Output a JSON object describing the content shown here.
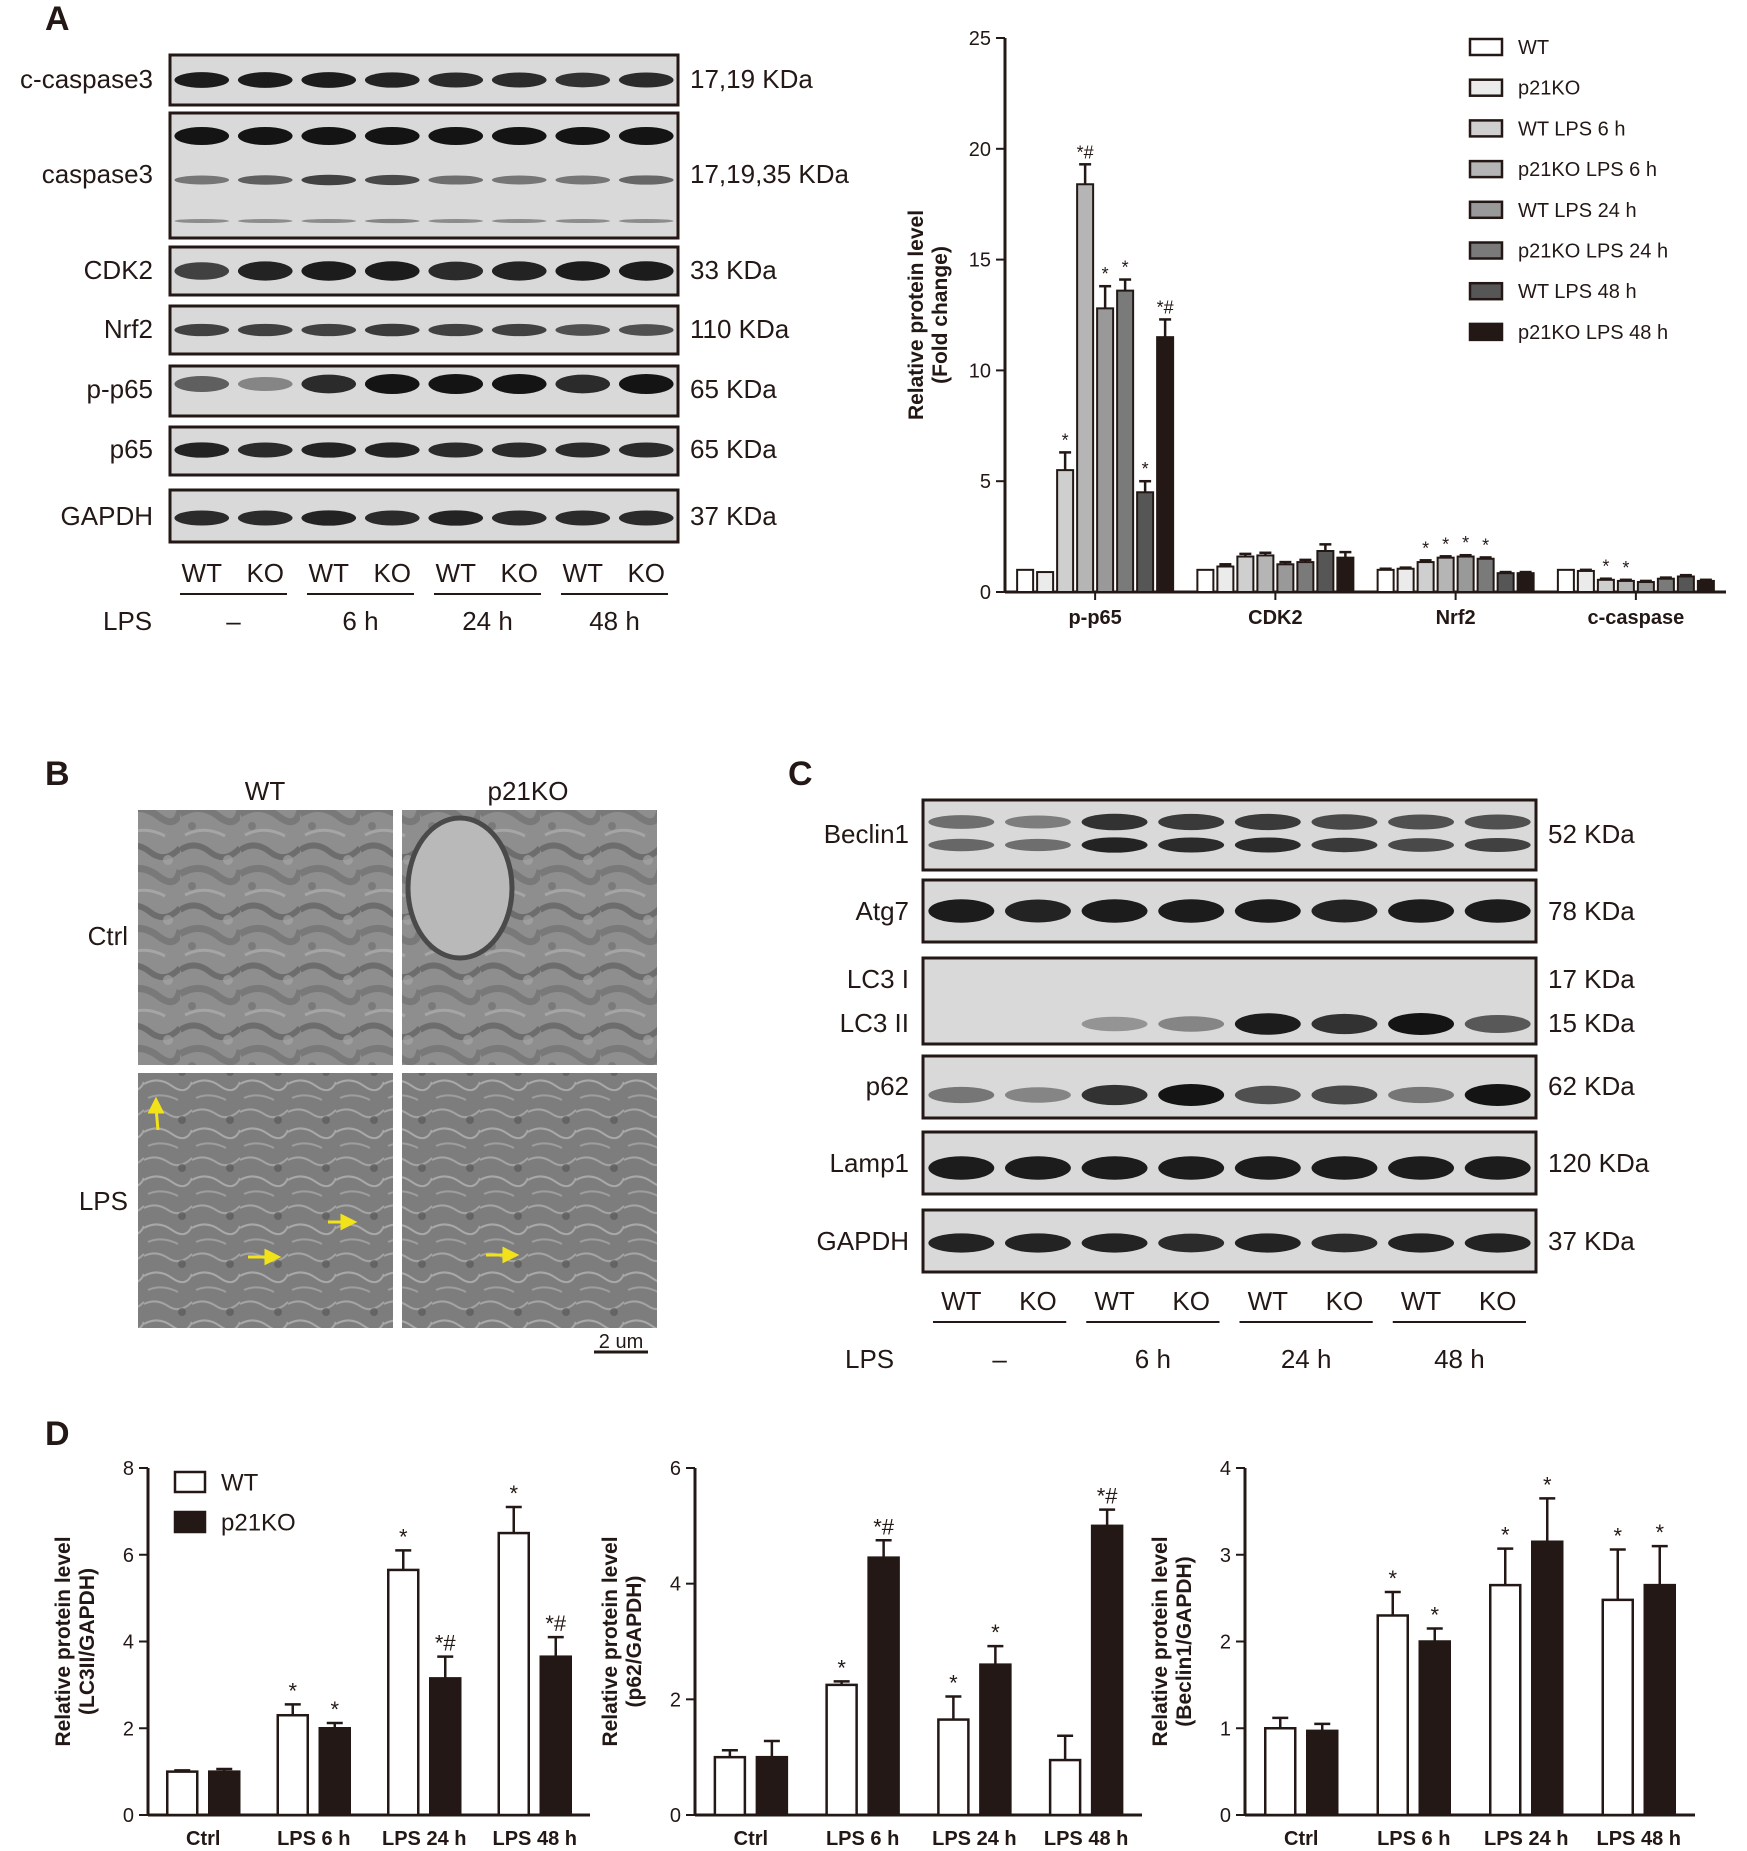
{
  "panel_letters": [
    "A",
    "B",
    "C",
    "D"
  ],
  "colors": {
    "ink": "#231815",
    "arrow": "#f2e21a",
    "blot_bg": "#d9d9d9",
    "series": [
      "#ffffff",
      "#ebebeb",
      "#cfcfcf",
      "#b5b5b5",
      "#999999",
      "#7a7a7a",
      "#565656",
      "#231815"
    ]
  },
  "panel_a_blot": {
    "rows": [
      {
        "name": "c-caspase3",
        "mw": "17,19 KDa"
      },
      {
        "name": "caspase3",
        "mw": "17,19,35 KDa"
      },
      {
        "name": "CDK2",
        "mw": "33 KDa"
      },
      {
        "name": "Nrf2",
        "mw": "110 KDa"
      },
      {
        "name": "p-p65",
        "mw": "65 KDa"
      },
      {
        "name": "p65",
        "mw": "65 KDa"
      },
      {
        "name": "GAPDH",
        "mw": "37 KDa"
      }
    ],
    "lanes": [
      "WT",
      "KO",
      "WT",
      "KO",
      "WT",
      "KO",
      "WT",
      "KO"
    ],
    "lps_label": "LPS",
    "conditions": [
      "–",
      "6 h",
      "24 h",
      "48 h"
    ]
  },
  "panel_b": {
    "columns": [
      "WT",
      "p21KO"
    ],
    "rows": [
      "Ctrl",
      "LPS"
    ],
    "scale_bar": "2 um"
  },
  "panel_c_blot": {
    "rows": [
      {
        "name": "Beclin1",
        "mw": "52 KDa"
      },
      {
        "name": "Atg7",
        "mw": "78 KDa"
      },
      {
        "name": "LC3 I",
        "mw": "17 KDa"
      },
      {
        "name": "LC3 II",
        "mw": "15 KDa"
      },
      {
        "name": "p62",
        "mw": "62 KDa"
      },
      {
        "name": "Lamp1",
        "mw": "120 KDa"
      },
      {
        "name": "GAPDH",
        "mw": "37 KDa"
      }
    ],
    "lanes": [
      "WT",
      "KO",
      "WT",
      "KO",
      "WT",
      "KO",
      "WT",
      "KO"
    ],
    "lps_label": "LPS",
    "conditions": [
      "–",
      "6 h",
      "24 h",
      "48 h"
    ]
  },
  "chart_data": [
    {
      "id": "A-bar",
      "type": "bar",
      "title": "",
      "xlabel": "",
      "ylabel": "Relative protein level (Fold change)",
      "ylim": [
        0,
        25
      ],
      "yticks": [
        0,
        5,
        10,
        15,
        20,
        25
      ],
      "categories": [
        "p-p65",
        "CDK2",
        "Nrf2",
        "c-caspase"
      ],
      "legend_position": "top-right",
      "series": [
        {
          "name": "WT",
          "values": [
            1.0,
            1.0,
            1.0,
            1.0
          ],
          "errors": [
            0,
            0,
            0.05,
            0
          ],
          "marks": [
            "",
            "",
            "",
            ""
          ]
        },
        {
          "name": "p21KO",
          "values": [
            0.9,
            1.15,
            1.05,
            0.95
          ],
          "errors": [
            0,
            0.1,
            0.05,
            0.05
          ],
          "marks": [
            "",
            "",
            "",
            ""
          ]
        },
        {
          "name": "WT LPS 6 h",
          "values": [
            5.5,
            1.6,
            1.35,
            0.55
          ],
          "errors": [
            0.8,
            0.12,
            0.08,
            0.05
          ],
          "marks": [
            "*",
            "",
            "*",
            "*"
          ]
        },
        {
          "name": "p21KO LPS 6 h",
          "values": [
            18.4,
            1.65,
            1.55,
            0.5
          ],
          "errors": [
            0.9,
            0.12,
            0.06,
            0.05
          ],
          "marks": [
            "*#",
            "",
            "*",
            "*"
          ]
        },
        {
          "name": "WT LPS 24 h",
          "values": [
            12.8,
            1.25,
            1.6,
            0.45
          ],
          "errors": [
            1.0,
            0.1,
            0.06,
            0.05
          ],
          "marks": [
            "*",
            "",
            "*",
            ""
          ]
        },
        {
          "name": "p21KO LPS 24 h",
          "values": [
            13.6,
            1.35,
            1.5,
            0.6
          ],
          "errors": [
            0.5,
            0.1,
            0.06,
            0.05
          ],
          "marks": [
            "*",
            "",
            "*",
            ""
          ]
        },
        {
          "name": "WT LPS 48 h",
          "values": [
            4.5,
            1.85,
            0.85,
            0.7
          ],
          "errors": [
            0.5,
            0.3,
            0.05,
            0.06
          ],
          "marks": [
            "*",
            "",
            "",
            ""
          ]
        },
        {
          "name": "p21KO LPS 48 h",
          "values": [
            11.5,
            1.55,
            0.85,
            0.5
          ],
          "errors": [
            0.8,
            0.25,
            0.05,
            0.05
          ],
          "marks": [
            "*#",
            "",
            "",
            ""
          ]
        }
      ]
    },
    {
      "id": "D-LC3",
      "type": "bar",
      "title": "",
      "xlabel": "",
      "ylabel": "Relative protein level (LC3II/GAPDH)",
      "ylim": [
        0,
        8
      ],
      "yticks": [
        0,
        2,
        4,
        6,
        8
      ],
      "categories": [
        "Ctrl",
        "LPS 6 h",
        "LPS 24 h",
        "LPS 48 h"
      ],
      "legend_position": "top-left",
      "series": [
        {
          "name": "WT",
          "values": [
            1.0,
            2.3,
            5.65,
            6.5
          ],
          "errors": [
            0.03,
            0.25,
            0.45,
            0.6
          ],
          "marks": [
            "",
            "*",
            "*",
            "*"
          ]
        },
        {
          "name": "p21KO",
          "values": [
            1.0,
            2.0,
            3.15,
            3.65
          ],
          "errors": [
            0.06,
            0.12,
            0.5,
            0.45
          ],
          "marks": [
            "",
            "*",
            "*#",
            "*#"
          ]
        }
      ]
    },
    {
      "id": "D-p62",
      "type": "bar",
      "title": "",
      "xlabel": "",
      "ylabel": "Relative protein level (p62/GAPDH)",
      "ylim": [
        0,
        6
      ],
      "yticks": [
        0,
        2,
        4,
        6
      ],
      "categories": [
        "Ctrl",
        "LPS 6 h",
        "LPS 24 h",
        "LPS 48 h"
      ],
      "series": [
        {
          "name": "WT",
          "values": [
            1.0,
            2.25,
            1.65,
            0.95
          ],
          "errors": [
            0.12,
            0.06,
            0.4,
            0.42
          ],
          "marks": [
            "",
            "*",
            "*",
            ""
          ]
        },
        {
          "name": "p21KO",
          "values": [
            1.0,
            4.45,
            2.6,
            5.0
          ],
          "errors": [
            0.28,
            0.3,
            0.32,
            0.28
          ],
          "marks": [
            "",
            "*#",
            "*",
            "*#"
          ]
        }
      ]
    },
    {
      "id": "D-Beclin1",
      "type": "bar",
      "title": "",
      "xlabel": "",
      "ylabel": "Relative protein level (Beclin1/GAPDH)",
      "ylim": [
        0,
        4
      ],
      "yticks": [
        0,
        1,
        2,
        3,
        4
      ],
      "categories": [
        "Ctrl",
        "LPS 6 h",
        "LPS 24 h",
        "LPS 48 h"
      ],
      "series": [
        {
          "name": "WT",
          "values": [
            1.0,
            2.3,
            2.65,
            2.48
          ],
          "errors": [
            0.12,
            0.27,
            0.42,
            0.58
          ],
          "marks": [
            "",
            "*",
            "*",
            "*"
          ]
        },
        {
          "name": "p21KO",
          "values": [
            0.97,
            2.0,
            3.15,
            2.65
          ],
          "errors": [
            0.08,
            0.15,
            0.5,
            0.45
          ],
          "marks": [
            "",
            "*",
            "*",
            "*"
          ]
        }
      ]
    }
  ]
}
